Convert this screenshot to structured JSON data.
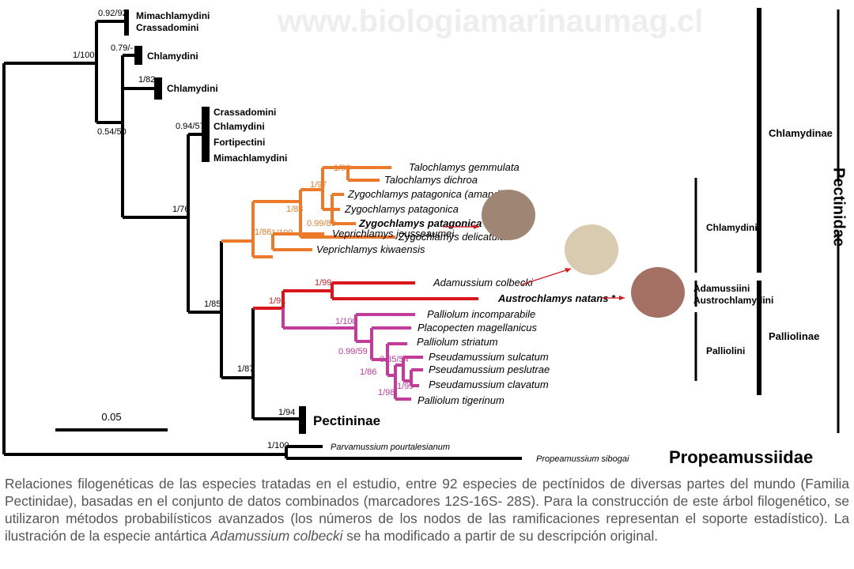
{
  "watermark": "www.biologiamarinaumag.cl",
  "support_values": [
    "0.92/92",
    "1/100",
    "0.79/-",
    "1/82",
    "0.54/50",
    "0.94/57",
    "1/76",
    "1/99",
    "1/97",
    "1/88",
    "0.99/89",
    "1/86",
    "1/100",
    "1/85",
    "1/99",
    "1/91",
    "1/100",
    "0.99/59",
    "0.85/54",
    "1/86",
    "1/99",
    "1/98",
    "1/87",
    "1/94",
    "1/100"
  ],
  "clade_labels": [
    [
      "Mimachlamydini",
      "Crassadomini"
    ],
    [
      "Chlamydini"
    ],
    [
      "Chlamydini"
    ],
    [
      "Crassadomini",
      "Chlamydini",
      "Fortipectini",
      "Mimachlamydini"
    ],
    [
      "Pectininae"
    ]
  ],
  "taxa": [
    "Talochlamys gemmulata",
    "Talochlamys dichroa",
    "Zygochlamys patagonica (amandi)",
    "Zygochlamys patagonica",
    "Zygochlamys patagonica *",
    "Zygochlamys delicatula",
    "Veprichlamys jousseaumei",
    "Veprichlamys kiwaensis",
    "Adamussium colbecki",
    "Austrochlamys natans *",
    "Palliolum incomparabile",
    "Placopecten magellanicus",
    "Palliolum striatum",
    "Pseudamussium sulcatum",
    "Pseudamussium peslutrae",
    "Pseudamussium clavatum",
    "Palliolum tigerinum",
    "Parvamussium pourtalesianum",
    "Propeamussium sibogai"
  ],
  "scale_bar": "0.05",
  "tribes": [
    "Chlamydini",
    "Adamussiini",
    "Austrochlamydini",
    "Palliolini"
  ],
  "subfamilies": [
    "Chlamydinae",
    "Palliolinae"
  ],
  "families": [
    "Pectinidae",
    "Propeamussiidae"
  ],
  "caption": {
    "text_1": "Relaciones filogenéticas de las especies tratadas en el estudio, entre 92 especies de pectínidos de diversas partes del mundo (Familia Pectinidae), basadas en el conjunto de datos combinados (marcadores 12S-16S- 28S). Para la construcción de este árbol filogenético, se utilizaron métodos probabilísticos avanzados (los números de los nodos de las ramificaciones representan el soporte estadístico). La ilustración de la especie antártica ",
    "species": "Adamussium colbecki",
    "text_2": " se ha modificado a partir de su descripción original."
  }
}
